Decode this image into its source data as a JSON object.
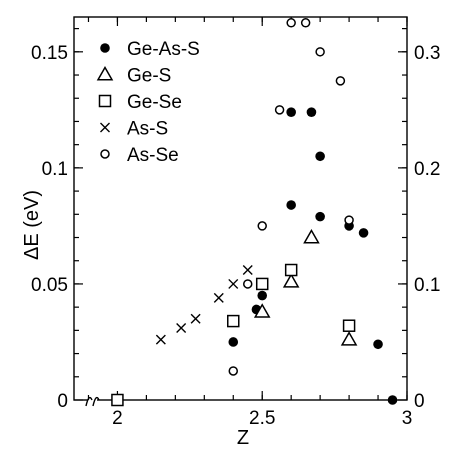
{
  "chart_data": {
    "type": "scatter",
    "xlabel": "Z",
    "ylabel": "ΔE (eV)",
    "xlim": [
      1.85,
      3.0
    ],
    "ylim": [
      0,
      0.165
    ],
    "y2lim": [
      0,
      0.33
    ],
    "x_ticks": [
      "2",
      "2.5",
      "3"
    ],
    "y_ticks": [
      "0",
      "0.05",
      "0.1",
      "0.15"
    ],
    "y2_ticks": [
      "0",
      "0.1",
      "0.2",
      "0.3"
    ],
    "legend_position": "top-left",
    "series": [
      {
        "name": "Ge-As-S",
        "marker": "filled-circle",
        "axis": "left",
        "points": [
          [
            2.4,
            0.025
          ],
          [
            2.48,
            0.039
          ],
          [
            2.5,
            0.045
          ],
          [
            2.6,
            0.124
          ],
          [
            2.6,
            0.084
          ],
          [
            2.67,
            0.124
          ],
          [
            2.7,
            0.105
          ],
          [
            2.7,
            0.079
          ],
          [
            2.8,
            0.075
          ],
          [
            2.85,
            0.072
          ],
          [
            2.9,
            0.024
          ],
          [
            2.95,
            0.0
          ]
        ]
      },
      {
        "name": "Ge-S",
        "marker": "open-triangle",
        "axis": "left",
        "points": [
          [
            2.5,
            0.038
          ],
          [
            2.6,
            0.051
          ],
          [
            2.67,
            0.07
          ],
          [
            2.8,
            0.026
          ]
        ]
      },
      {
        "name": "Ge-Se",
        "marker": "open-square",
        "axis": "left",
        "points": [
          [
            2.0,
            0.0
          ],
          [
            2.4,
            0.034
          ],
          [
            2.5,
            0.05
          ],
          [
            2.6,
            0.056
          ],
          [
            2.8,
            0.032
          ]
        ]
      },
      {
        "name": "As-S",
        "marker": "cross",
        "axis": "left",
        "points": [
          [
            2.15,
            0.026
          ],
          [
            2.22,
            0.031
          ],
          [
            2.27,
            0.035
          ],
          [
            2.35,
            0.044
          ],
          [
            2.4,
            0.05
          ],
          [
            2.45,
            0.056
          ]
        ]
      },
      {
        "name": "As-Se",
        "marker": "open-circle",
        "axis": "right",
        "points": [
          [
            2.4,
            0.025
          ],
          [
            2.45,
            0.1
          ],
          [
            2.5,
            0.15
          ],
          [
            2.56,
            0.25
          ],
          [
            2.6,
            0.325
          ],
          [
            2.65,
            0.325
          ],
          [
            2.7,
            0.3
          ],
          [
            2.77,
            0.275
          ],
          [
            2.8,
            0.155
          ]
        ]
      }
    ]
  }
}
